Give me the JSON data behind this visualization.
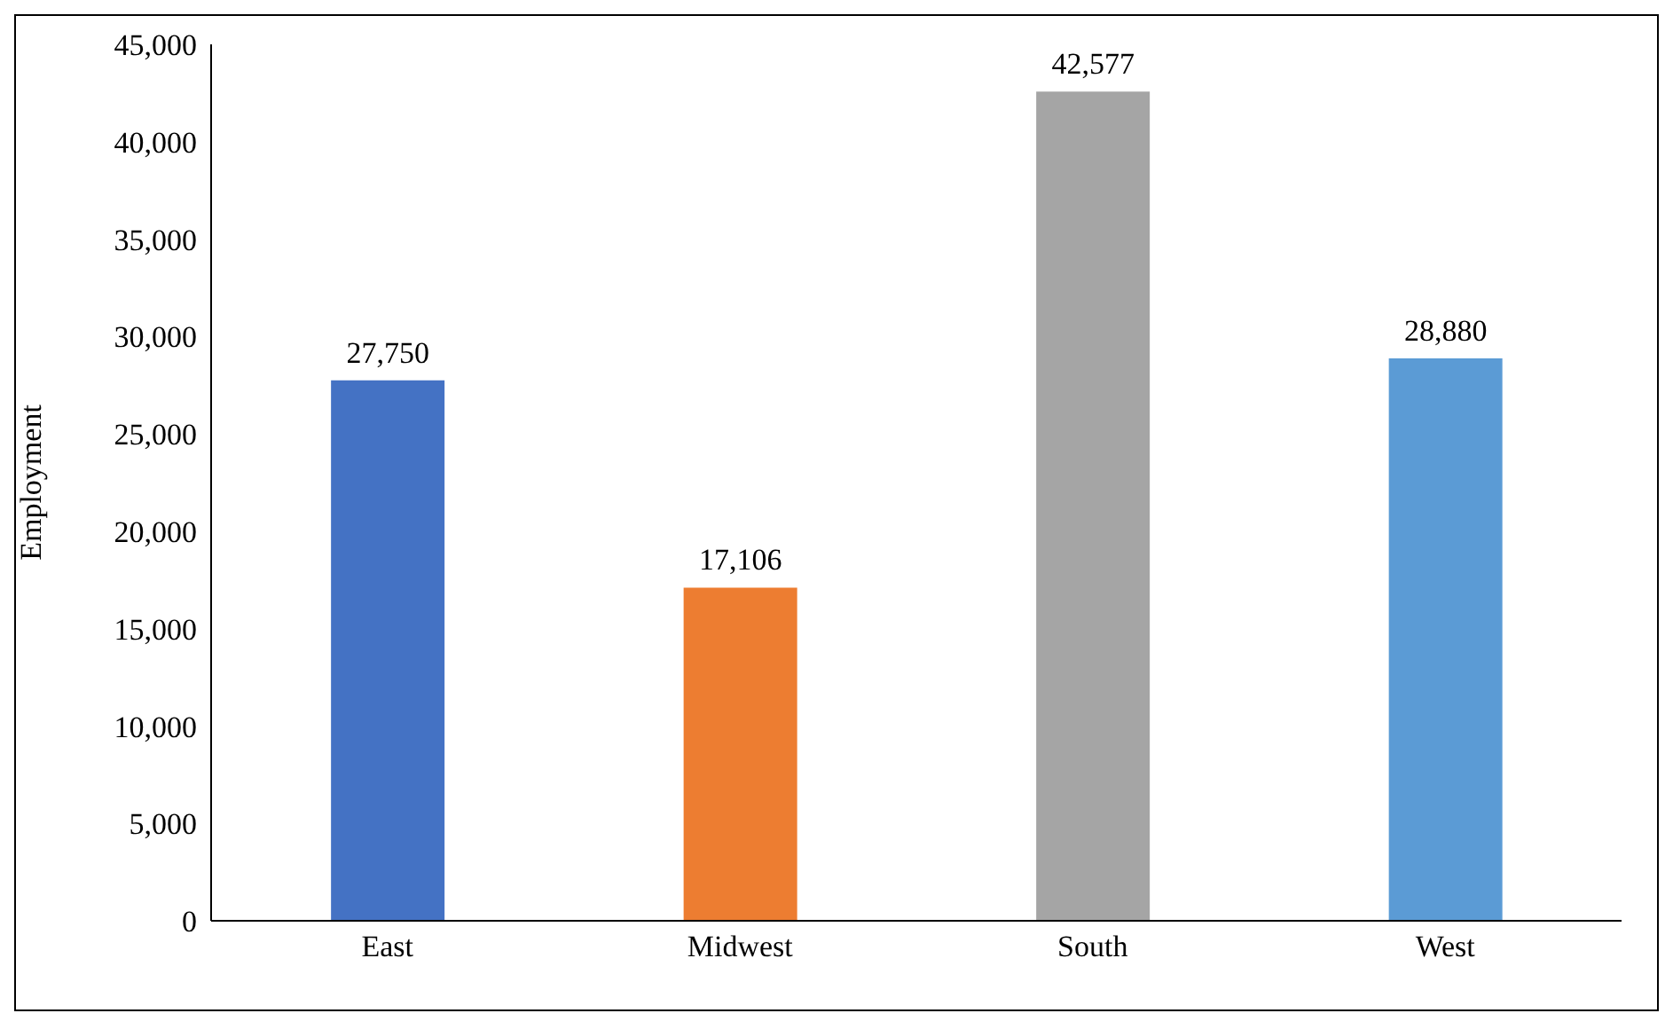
{
  "chart_data": {
    "type": "bar",
    "ylabel": "Employment",
    "categories": [
      "East",
      "Midwest",
      "South",
      "West"
    ],
    "values": [
      27750,
      17106,
      42577,
      28880
    ],
    "colors": [
      "#4472c4",
      "#ed7d31",
      "#a5a5a5",
      "#5b9bd5"
    ],
    "ylim": [
      0,
      45000
    ],
    "yticks": [
      {
        "value": 0,
        "label": "0"
      },
      {
        "value": 5000,
        "label": "5,000"
      },
      {
        "value": 10000,
        "label": "10,000"
      },
      {
        "value": 15000,
        "label": "15,000"
      },
      {
        "value": 20000,
        "label": "20,000"
      },
      {
        "value": 25000,
        "label": "25,000"
      },
      {
        "value": 30000,
        "label": "30,000"
      },
      {
        "value": 35000,
        "label": "35,000"
      },
      {
        "value": 40000,
        "label": "40,000"
      },
      {
        "value": 45000,
        "label": "45,000"
      }
    ],
    "value_labels": [
      "27,750",
      "17,106",
      "42,577",
      "28,880"
    ],
    "grid": false,
    "legend": false
  }
}
